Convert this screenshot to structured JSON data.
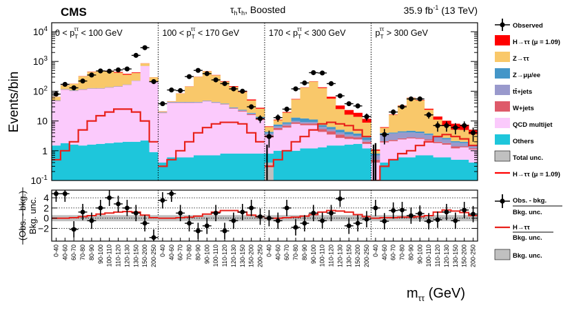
{
  "chart_data": {
    "type": "bar",
    "subtype": "stacked-histogram-with-ratio-panel",
    "experiment": "CMS",
    "channel": "τ_h τ_h, Boosted",
    "lumi": "35.9 fb",
    "lumi_exp": "-1",
    "energy": "(13 TeV)",
    "ylabel": "Events/bin",
    "ratio_ylabel_line1": "(Obs. - bkg.)",
    "ratio_ylabel_line2": "Bkg. unc.",
    "xlabel_main": "m",
    "xlabel_sub": "ττ",
    "xlabel_unit": "(GeV)",
    "ylim": [
      0.1,
      20000
    ],
    "yticks": [
      "10^4",
      "10^3",
      "10^2",
      "10",
      "1",
      "10^-1"
    ],
    "ratio_ylim": [
      -4.5,
      5.5
    ],
    "ratio_yticks": [
      "4",
      "2",
      "0",
      "−2"
    ],
    "categories": [
      "0 < pT^ττ < 100 GeV",
      "100 < pT^ττ < 170 GeV",
      "170 < pT^ττ < 300 GeV",
      "pT^ττ > 300 GeV"
    ],
    "category_labels": [
      {
        "pre": "0 < p",
        "sub": "T",
        "sup": "ττ",
        "post": " < 100 GeV"
      },
      {
        "pre": "100 < p",
        "sub": "T",
        "sup": "ττ",
        "post": " < 170 GeV"
      },
      {
        "pre": "170 < p",
        "sub": "T",
        "sup": "ττ",
        "post": " < 300 GeV"
      },
      {
        "pre": "p",
        "sub": "T",
        "sup": "ττ",
        "post": " > 300 GeV"
      }
    ],
    "bins": [
      "0-40",
      "40-60",
      "60-70",
      "70-80",
      "80-90",
      "90-100",
      "100-110",
      "110-120",
      "120-130",
      "130-150",
      "150-200",
      "200-250"
    ],
    "series": [
      {
        "name": "Others",
        "color": "#1ec6db",
        "cat": [
          [
            1.5,
            1.8,
            1.6,
            1.5,
            1.6,
            1.7,
            1.8,
            1.9,
            2.0,
            2.0,
            2.2,
            0.9
          ],
          [
            0.4,
            0.6,
            0.6,
            0.6,
            0.7,
            0.7,
            0.7,
            0.8,
            0.8,
            0.8,
            0.8,
            0.8
          ],
          [
            0.8,
            1.0,
            1.0,
            1.0,
            1.2,
            1.2,
            1.3,
            1.5,
            1.5,
            1.6,
            1.7,
            1.2
          ],
          [
            0.1,
            0.4,
            0.5,
            0.6,
            0.6,
            0.7,
            0.7,
            0.6,
            0.6,
            0.5,
            0.5,
            0.4
          ]
        ]
      },
      {
        "name": "QCD multijet",
        "color": "#fbcafc",
        "cat": [
          [
            45,
            110,
            100,
            110,
            120,
            120,
            130,
            140,
            160,
            220,
            700,
            200
          ],
          [
            18,
            40,
            40,
            40,
            40,
            45,
            40,
            35,
            25,
            20,
            15,
            10
          ],
          [
            2,
            4,
            5,
            7,
            6,
            6,
            3,
            2,
            1.2,
            0.9,
            0.7,
            0.5
          ],
          [
            0.3,
            1.5,
            1.6,
            1.8,
            2,
            1.8,
            1.5,
            1.2,
            1,
            0.7,
            0.8,
            0.7
          ]
        ]
      },
      {
        "name": "W+jets",
        "color": "#de5a6a",
        "cat": [
          [
            1,
            2,
            2,
            2,
            2,
            2,
            2,
            2,
            2,
            2,
            2,
            1
          ],
          [
            0.5,
            1,
            1,
            1,
            1,
            1,
            1,
            1,
            1,
            1,
            1,
            1
          ],
          [
            0.5,
            0.8,
            1,
            1,
            1,
            1,
            1,
            1,
            0.8,
            0.5,
            0.4,
            0.3
          ],
          [
            0.1,
            0.2,
            0.2,
            0.2,
            0.2,
            0.2,
            0.2,
            0.2,
            0.2,
            0.2,
            0.1,
            0.1
          ]
        ]
      },
      {
        "name": "tt̄+jets",
        "color": "#9999cc",
        "cat": [
          [
            1,
            2,
            2,
            2,
            2,
            2,
            2,
            2,
            2,
            2,
            2,
            1
          ],
          [
            0.5,
            1,
            1,
            1,
            1,
            1,
            1,
            1,
            1,
            1,
            1,
            1
          ],
          [
            0.5,
            0.8,
            1,
            1,
            1,
            1,
            1,
            0.8,
            0.6,
            0.5,
            0.4,
            0.3
          ],
          [
            0.2,
            1.5,
            1.5,
            1.5,
            1.3,
            1.2,
            1,
            0.8,
            0.6,
            0.5,
            0.4,
            0.3
          ]
        ]
      },
      {
        "name": "Z→μμ/ee",
        "color": "#4496c8",
        "cat": [
          [
            1,
            2,
            2,
            2,
            2,
            2,
            2,
            2,
            2,
            2,
            2,
            1
          ],
          [
            0.5,
            1,
            1,
            1,
            1,
            1,
            1,
            1,
            1,
            1,
            1,
            1
          ],
          [
            0.5,
            1,
            1,
            3,
            3,
            2,
            1,
            1,
            1,
            0.8,
            0.6,
            0.5
          ],
          [
            0.1,
            0.3,
            0.3,
            0.4,
            0.6,
            0.5,
            0.4,
            0.3,
            0.3,
            0.2,
            0.2,
            0.1
          ]
        ]
      },
      {
        "name": "Z→ττ",
        "color": "#f9c86a",
        "cat": [
          [
            15,
            40,
            70,
            200,
            320,
            350,
            330,
            270,
            190,
            180,
            150,
            90
          ],
          [
            1,
            2,
            40,
            100,
            260,
            420,
            300,
            170,
            110,
            70,
            30,
            12
          ],
          [
            2,
            3,
            10,
            40,
            120,
            200,
            120,
            50,
            20,
            12,
            10,
            6
          ],
          [
            0.2,
            2,
            12,
            28,
            55,
            45,
            20,
            8,
            4,
            3,
            3,
            2
          ]
        ]
      },
      {
        "name": "H→ττ (μ = 1.09)",
        "color": "#ff0000",
        "cat": [
          [
            0.5,
            1,
            2,
            5,
            10,
            15,
            20,
            25,
            25,
            20,
            10,
            2
          ],
          [
            0.3,
            0.5,
            1,
            2,
            4,
            6,
            8,
            9,
            9,
            8,
            4,
            2
          ],
          [
            0.3,
            0.5,
            1,
            2,
            3,
            5,
            8,
            9,
            8,
            7,
            5,
            3
          ],
          [
            0.1,
            0.3,
            0.5,
            0.8,
            1,
            1.5,
            2,
            3,
            3.5,
            3,
            2.5,
            1.5
          ]
        ]
      }
    ],
    "observed": [
      [
        80,
        170,
        130,
        220,
        350,
        480,
        470,
        520,
        560,
        1600,
        2900,
        210
      ],
      [
        38,
        110,
        105,
        310,
        500,
        390,
        240,
        180,
        120,
        100,
        30,
        12
      ],
      [
        3,
        13,
        25,
        120,
        190,
        420,
        410,
        180,
        70,
        38,
        32,
        14
      ],
      [
        0.05,
        3.5,
        20,
        30,
        55,
        55,
        16,
        7,
        7,
        6,
        7,
        4
      ]
    ],
    "observed_errors_low": [
      [
        null,
        null,
        null,
        null,
        null,
        null,
        null,
        null,
        null,
        null,
        null,
        null
      ],
      [
        null,
        null,
        null,
        null,
        null,
        null,
        null,
        null,
        null,
        null,
        null,
        null
      ],
      [
        null,
        null,
        null,
        null,
        null,
        null,
        null,
        null,
        null,
        null,
        null,
        null
      ],
      [
        0.05,
        null,
        null,
        null,
        null,
        null,
        null,
        null,
        null,
        null,
        null,
        null
      ]
    ],
    "ratio_observed": [
      [
        4.8,
        4.8,
        -2.2,
        1.2,
        -0.5,
        2.0,
        4.0,
        2.8,
        2.0,
        1.0,
        -1.0,
        -3.8
      ],
      [
        3.5,
        4.8,
        1.0,
        -1.0,
        -2.5,
        -1.5,
        1.0,
        -2.5,
        -0.5,
        1.2,
        2.0,
        0.3
      ],
      [
        0.0,
        -0.5,
        2.0,
        -1.8,
        -1.0,
        1.0,
        -0.5,
        1.0,
        3.8,
        -1.5,
        -1.0,
        -0.2
      ],
      [
        2.0,
        -0.6,
        1.5,
        1.6,
        0.5,
        0.9,
        -0.6,
        -0.3,
        1.2,
        -0.5,
        1.6,
        0.8
      ]
    ],
    "ratio_higgs": [
      [
        0.0,
        0.0,
        0.1,
        0.3,
        0.5,
        0.8,
        1.0,
        1.2,
        1.3,
        1.2,
        0.6,
        0.1
      ],
      [
        0.0,
        0.0,
        0.1,
        0.2,
        0.4,
        0.8,
        1.2,
        1.5,
        1.5,
        1.2,
        0.6,
        0.3
      ],
      [
        0.0,
        0.0,
        0.1,
        0.2,
        0.4,
        0.7,
        1.2,
        1.5,
        1.4,
        1.2,
        0.7,
        0.3
      ],
      [
        0.0,
        0.1,
        0.1,
        0.2,
        0.2,
        0.3,
        0.5,
        1.2,
        1.6,
        1.4,
        1.1,
        0.5
      ]
    ],
    "ratio_unc": 0.6,
    "legend_title_entries": [
      {
        "name": "Observed",
        "kind": "marker"
      },
      {
        "name": "H→ττ (μ = 1.09)",
        "kind": "box",
        "color": "#ff0000"
      },
      {
        "name": "Z→ττ",
        "kind": "box",
        "color": "#f9c86a"
      },
      {
        "name": "Z→μμ/ee",
        "kind": "box",
        "color": "#4496c8"
      },
      {
        "name": "tt̄+jets",
        "kind": "box",
        "color": "#9999cc"
      },
      {
        "name": "W+jets",
        "kind": "box",
        "color": "#de5a6a"
      },
      {
        "name": "QCD multijet",
        "kind": "box",
        "color": "#fbcafc"
      },
      {
        "name": "Others",
        "kind": "box",
        "color": "#1ec6db"
      },
      {
        "name": "Total unc.",
        "kind": "box",
        "color": "#c0c0c0"
      },
      {
        "name": "H→ττ (μ = 1.09)",
        "kind": "line",
        "color": "#ff0000"
      }
    ],
    "ratio_legend": {
      "obs_num": "Obs. - bkg.",
      "obs_den": "Bkg. unc.",
      "h_num": "H→ττ",
      "h_den": "Bkg. unc.",
      "unc": "Bkg. unc."
    }
  }
}
